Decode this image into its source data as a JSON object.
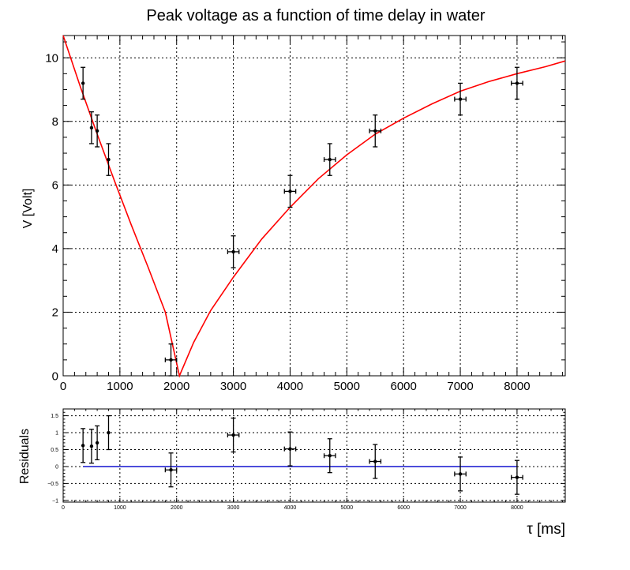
{
  "chart_data": [
    {
      "type": "scatter",
      "title": "Peak voltage as a function of time delay in water",
      "xlabel": "",
      "ylabel": "V [Volt]",
      "xlim": [
        0,
        8850
      ],
      "ylim": [
        0,
        10.7
      ],
      "xticks": [
        "0",
        "1000",
        "2000",
        "3000",
        "4000",
        "5000",
        "6000",
        "7000",
        "8000"
      ],
      "yticks": [
        "0",
        "2",
        "4",
        "6",
        "8",
        "10"
      ],
      "xtick_values": [
        0,
        1000,
        2000,
        3000,
        4000,
        5000,
        6000,
        7000,
        8000
      ],
      "ytick_values": [
        0,
        2,
        4,
        6,
        8,
        10
      ],
      "grid": true,
      "points": [
        {
          "x": 350,
          "y": 9.2,
          "xerr": 0,
          "yerr": 0.5
        },
        {
          "x": 500,
          "y": 7.8,
          "xerr": 0,
          "yerr": 0.5
        },
        {
          "x": 600,
          "y": 7.7,
          "xerr": 0,
          "yerr": 0.5
        },
        {
          "x": 800,
          "y": 6.8,
          "xerr": 0,
          "yerr": 0.5
        },
        {
          "x": 1900,
          "y": 0.5,
          "xerr": 100,
          "yerr": 0.5
        },
        {
          "x": 3000,
          "y": 3.9,
          "xerr": 100,
          "yerr": 0.5
        },
        {
          "x": 4000,
          "y": 5.8,
          "xerr": 100,
          "yerr": 0.5
        },
        {
          "x": 4700,
          "y": 6.8,
          "xerr": 100,
          "yerr": 0.5
        },
        {
          "x": 5500,
          "y": 7.7,
          "xerr": 100,
          "yerr": 0.5
        },
        {
          "x": 7000,
          "y": 8.7,
          "xerr": 100,
          "yerr": 0.5
        },
        {
          "x": 8000,
          "y": 9.2,
          "xerr": 100,
          "yerr": 0.5
        }
      ],
      "fit_curve": {
        "color": "#ff0000",
        "x": [
          0,
          300,
          600,
          900,
          1200,
          1500,
          1800,
          2050,
          2300,
          2600,
          3000,
          3500,
          4000,
          4500,
          5000,
          5500,
          6000,
          6500,
          7000,
          7500,
          8000,
          8500,
          8850
        ],
        "y": [
          10.7,
          9.1,
          7.6,
          6.15,
          4.75,
          3.4,
          2.0,
          0.0,
          1.05,
          2.05,
          3.1,
          4.3,
          5.3,
          6.2,
          6.95,
          7.6,
          8.1,
          8.55,
          8.95,
          9.25,
          9.5,
          9.72,
          9.9
        ]
      }
    },
    {
      "type": "scatter",
      "title": "",
      "xlabel": "τ [ms]",
      "ylabel": "Residuals",
      "xlim": [
        0,
        8850
      ],
      "ylim": [
        -1.05,
        1.7
      ],
      "xticks": [
        "0",
        "1000",
        "2000",
        "3000",
        "4000",
        "5000",
        "6000",
        "7000",
        "8000"
      ],
      "yticks": [
        "−1",
        "−0.5",
        "0",
        "0.5",
        "1",
        "1.5"
      ],
      "xtick_values": [
        0,
        1000,
        2000,
        3000,
        4000,
        5000,
        6000,
        7000,
        8000
      ],
      "ytick_values": [
        -1,
        -0.5,
        0,
        0.5,
        1,
        1.5
      ],
      "grid": true,
      "points": [
        {
          "x": 350,
          "y": 0.62,
          "xerr": 0,
          "yerr": 0.5
        },
        {
          "x": 500,
          "y": 0.6,
          "xerr": 0,
          "yerr": 0.5
        },
        {
          "x": 600,
          "y": 0.7,
          "xerr": 0,
          "yerr": 0.5
        },
        {
          "x": 800,
          "y": 1.0,
          "xerr": 0,
          "yerr": 0.5
        },
        {
          "x": 1900,
          "y": -0.1,
          "xerr": 100,
          "yerr": 0.5
        },
        {
          "x": 3000,
          "y": 0.93,
          "xerr": 100,
          "yerr": 0.5
        },
        {
          "x": 4000,
          "y": 0.52,
          "xerr": 100,
          "yerr": 0.5
        },
        {
          "x": 4700,
          "y": 0.32,
          "xerr": 100,
          "yerr": 0.5
        },
        {
          "x": 5500,
          "y": 0.15,
          "xerr": 100,
          "yerr": 0.5
        },
        {
          "x": 7000,
          "y": -0.22,
          "xerr": 100,
          "yerr": 0.5
        },
        {
          "x": 8000,
          "y": -0.32,
          "xerr": 100,
          "yerr": 0.5
        }
      ],
      "reference_line": {
        "y": 0,
        "x": [
          350,
          8000
        ],
        "color": "#0000cc"
      }
    }
  ]
}
